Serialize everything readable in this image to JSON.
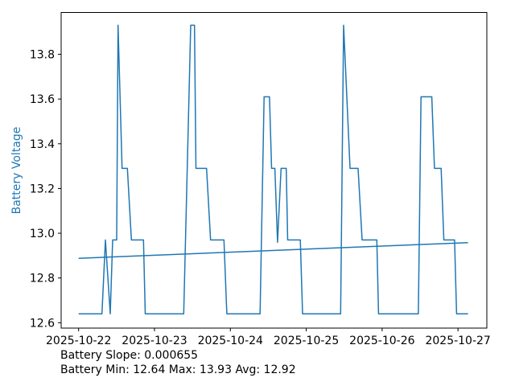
{
  "chart_data": {
    "type": "line",
    "title": "",
    "xlabel": "",
    "ylabel": "Battery Voltage",
    "ylabel_color": "#1f77b4",
    "line_color": "#1f77b4",
    "axis_color": "#000000",
    "tick_label_color": "#000000",
    "grid": false,
    "legend": "none",
    "xlim_days_from_2025_10_22": [
      -0.23,
      5.38
    ],
    "ylim": [
      12.576,
      13.987
    ],
    "x_axis": {
      "positions_days": [
        0,
        1,
        2,
        3,
        4,
        5
      ],
      "labels": [
        "2025-10-22",
        "2025-10-23",
        "2025-10-24",
        "2025-10-25",
        "2025-10-26",
        "2025-10-27"
      ]
    },
    "y_axis": {
      "positions": [
        12.6,
        12.8,
        13.0,
        13.2,
        13.4,
        13.6,
        13.8
      ],
      "labels": [
        "12.6",
        "12.8",
        "13.0",
        "13.2",
        "13.4",
        "13.6",
        "13.8"
      ]
    },
    "series": [
      {
        "name": "battery-voltage",
        "points": [
          [
            0.0,
            12.64
          ],
          [
            0.308,
            12.64
          ],
          [
            0.353,
            12.97
          ],
          [
            0.417,
            12.64
          ],
          [
            0.449,
            12.97
          ],
          [
            0.502,
            12.97
          ],
          [
            0.52,
            13.93
          ],
          [
            0.573,
            13.29
          ],
          [
            0.643,
            13.29
          ],
          [
            0.696,
            12.97
          ],
          [
            0.855,
            12.97
          ],
          [
            0.878,
            12.64
          ],
          [
            1.385,
            12.64
          ],
          [
            1.477,
            13.93
          ],
          [
            1.527,
            13.93
          ],
          [
            1.546,
            13.29
          ],
          [
            1.686,
            13.29
          ],
          [
            1.739,
            12.97
          ],
          [
            1.915,
            12.97
          ],
          [
            1.954,
            12.64
          ],
          [
            2.392,
            12.64
          ],
          [
            2.445,
            13.61
          ],
          [
            2.516,
            13.61
          ],
          [
            2.543,
            13.29
          ],
          [
            2.587,
            13.29
          ],
          [
            2.622,
            12.96
          ],
          [
            2.668,
            13.29
          ],
          [
            2.736,
            13.29
          ],
          [
            2.755,
            12.97
          ],
          [
            2.922,
            12.97
          ],
          [
            2.951,
            12.64
          ],
          [
            3.453,
            12.64
          ],
          [
            3.492,
            13.93
          ],
          [
            3.577,
            13.29
          ],
          [
            3.683,
            13.29
          ],
          [
            3.736,
            12.97
          ],
          [
            3.93,
            12.97
          ],
          [
            3.953,
            12.64
          ],
          [
            4.478,
            12.64
          ],
          [
            4.513,
            13.61
          ],
          [
            4.655,
            13.61
          ],
          [
            4.69,
            13.29
          ],
          [
            4.778,
            13.29
          ],
          [
            4.814,
            12.97
          ],
          [
            4.955,
            12.97
          ],
          [
            4.981,
            12.64
          ],
          [
            5.132,
            12.64
          ]
        ]
      },
      {
        "name": "battery-trend",
        "points": [
          [
            0.0,
            12.888
          ],
          [
            5.132,
            12.958
          ]
        ]
      }
    ],
    "annotations": [
      "Battery Slope: 0.000655",
      "Battery Min: 12.64 Max: 13.93 Avg: 12.92"
    ],
    "stats": {
      "slope": 0.000655,
      "min": 12.64,
      "max": 13.93,
      "avg": 12.92
    }
  }
}
